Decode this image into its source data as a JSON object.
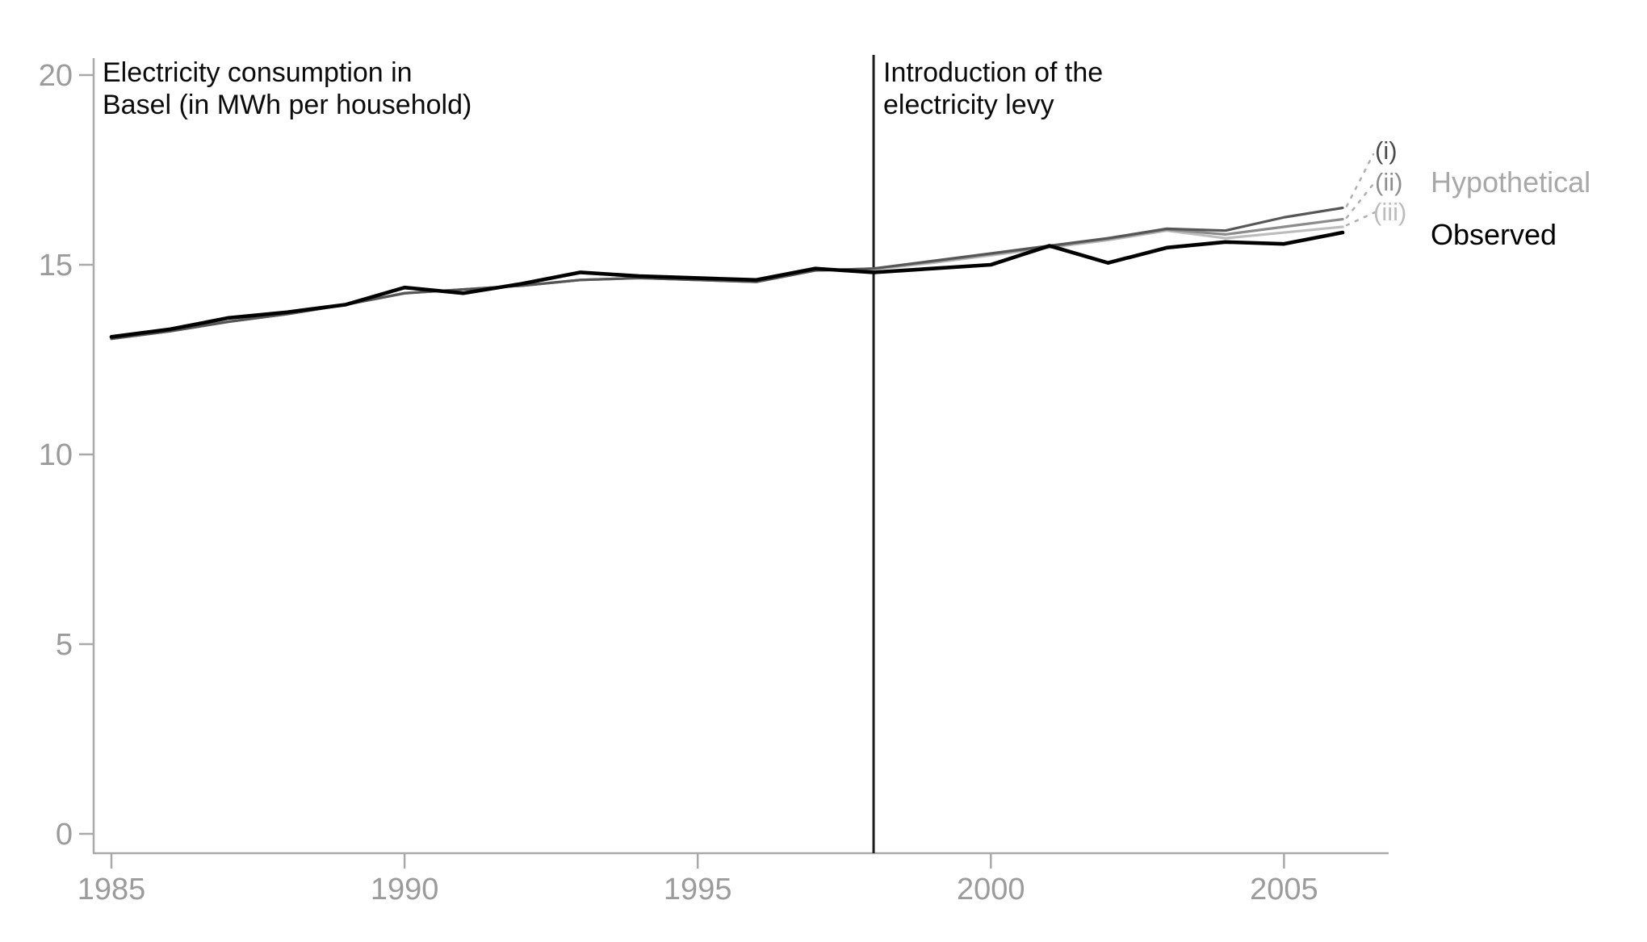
{
  "chart_data": {
    "type": "line",
    "title": "Electricity consumption in Basel (in MWh per household)",
    "title_lines": [
      "Electricity consumption in",
      "Basel (in MWh per household)"
    ],
    "x": [
      1985,
      1986,
      1987,
      1988,
      1989,
      1990,
      1991,
      1992,
      1993,
      1994,
      1995,
      1996,
      1997,
      1998,
      1999,
      2000,
      2001,
      2002,
      2003,
      2004,
      2005,
      2006
    ],
    "series": [
      {
        "name": "Hypothetical (iii)",
        "tag": "(iii)",
        "color": "#bdbdbd",
        "width": 3.2,
        "values": [
          13.05,
          13.25,
          13.5,
          13.7,
          13.95,
          14.25,
          14.35,
          14.45,
          14.6,
          14.65,
          14.6,
          14.55,
          14.85,
          14.88,
          15.05,
          15.25,
          15.45,
          15.65,
          15.9,
          15.7,
          15.85,
          16.0
        ]
      },
      {
        "name": "Hypothetical (ii)",
        "tag": "(ii)",
        "color": "#8c8c8c",
        "width": 3.2,
        "values": [
          13.05,
          13.25,
          13.5,
          13.7,
          13.95,
          14.25,
          14.35,
          14.45,
          14.6,
          14.65,
          14.6,
          14.55,
          14.85,
          14.9,
          15.08,
          15.28,
          15.48,
          15.68,
          15.93,
          15.8,
          16.0,
          16.2
        ]
      },
      {
        "name": "Hypothetical (i)",
        "tag": "(i)",
        "color": "#565656",
        "width": 3.2,
        "values": [
          13.05,
          13.25,
          13.5,
          13.7,
          13.95,
          14.25,
          14.35,
          14.45,
          14.6,
          14.65,
          14.6,
          14.55,
          14.85,
          14.9,
          15.1,
          15.3,
          15.5,
          15.7,
          15.95,
          15.9,
          16.25,
          16.5
        ]
      },
      {
        "name": "Observed",
        "tag": "Observed",
        "color": "#000000",
        "width": 4.6,
        "values": [
          13.1,
          13.3,
          13.6,
          13.75,
          13.95,
          14.4,
          14.25,
          14.5,
          14.8,
          14.7,
          14.65,
          14.6,
          14.9,
          14.8,
          14.9,
          15.0,
          15.5,
          15.05,
          15.45,
          15.6,
          15.55,
          15.85
        ]
      }
    ],
    "xticks": [
      1985,
      1990,
      1995,
      2000,
      2005
    ],
    "xtick_labels": [
      "1985",
      "1990",
      "1995",
      "2000",
      "2005"
    ],
    "yticks": [
      0,
      5,
      10,
      15,
      20
    ],
    "ytick_labels": [
      "0",
      "5",
      "10",
      "15",
      "20"
    ],
    "xlim": [
      1985,
      2006
    ],
    "ylim": [
      0,
      20
    ],
    "grid": false,
    "legend_position": "right",
    "vline": {
      "x": 1998,
      "label": "Introduction of the electricity levy",
      "label_lines": [
        "Introduction of the",
        "electricity levy"
      ]
    },
    "legend": {
      "series_tags": [
        "(i)",
        "(ii)",
        "(iii)"
      ],
      "hypothetical_label": "Hypothetical",
      "observed_label": "Observed"
    },
    "colors": {
      "axis": "#a9a9a9",
      "tick_text": "#9b9b9b",
      "vline": "#1c1c1c",
      "leader_dash": "#b0b0b0",
      "hypothetical_i": "#565656",
      "hypothetical_ii": "#8c8c8c",
      "hypothetical_iii": "#bdbdbd",
      "observed": "#000000",
      "hypothetical_text": "#a8a8a8"
    }
  }
}
